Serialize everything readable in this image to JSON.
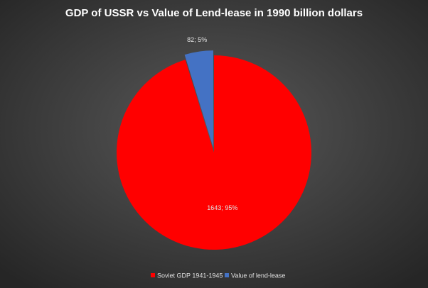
{
  "chart_data": {
    "type": "pie",
    "title": "GDP  of USSR vs Value of Lend-lease  in 1990 billion  dollars",
    "categories": [
      "Soviet GDP 1941-1945",
      "Value of lend-lease"
    ],
    "values": [
      1643,
      82
    ],
    "value_labels": [
      "1643; 95%",
      "82; 5%"
    ],
    "colors": [
      "#ff0000",
      "#4472c4"
    ],
    "legend": "bottom"
  }
}
